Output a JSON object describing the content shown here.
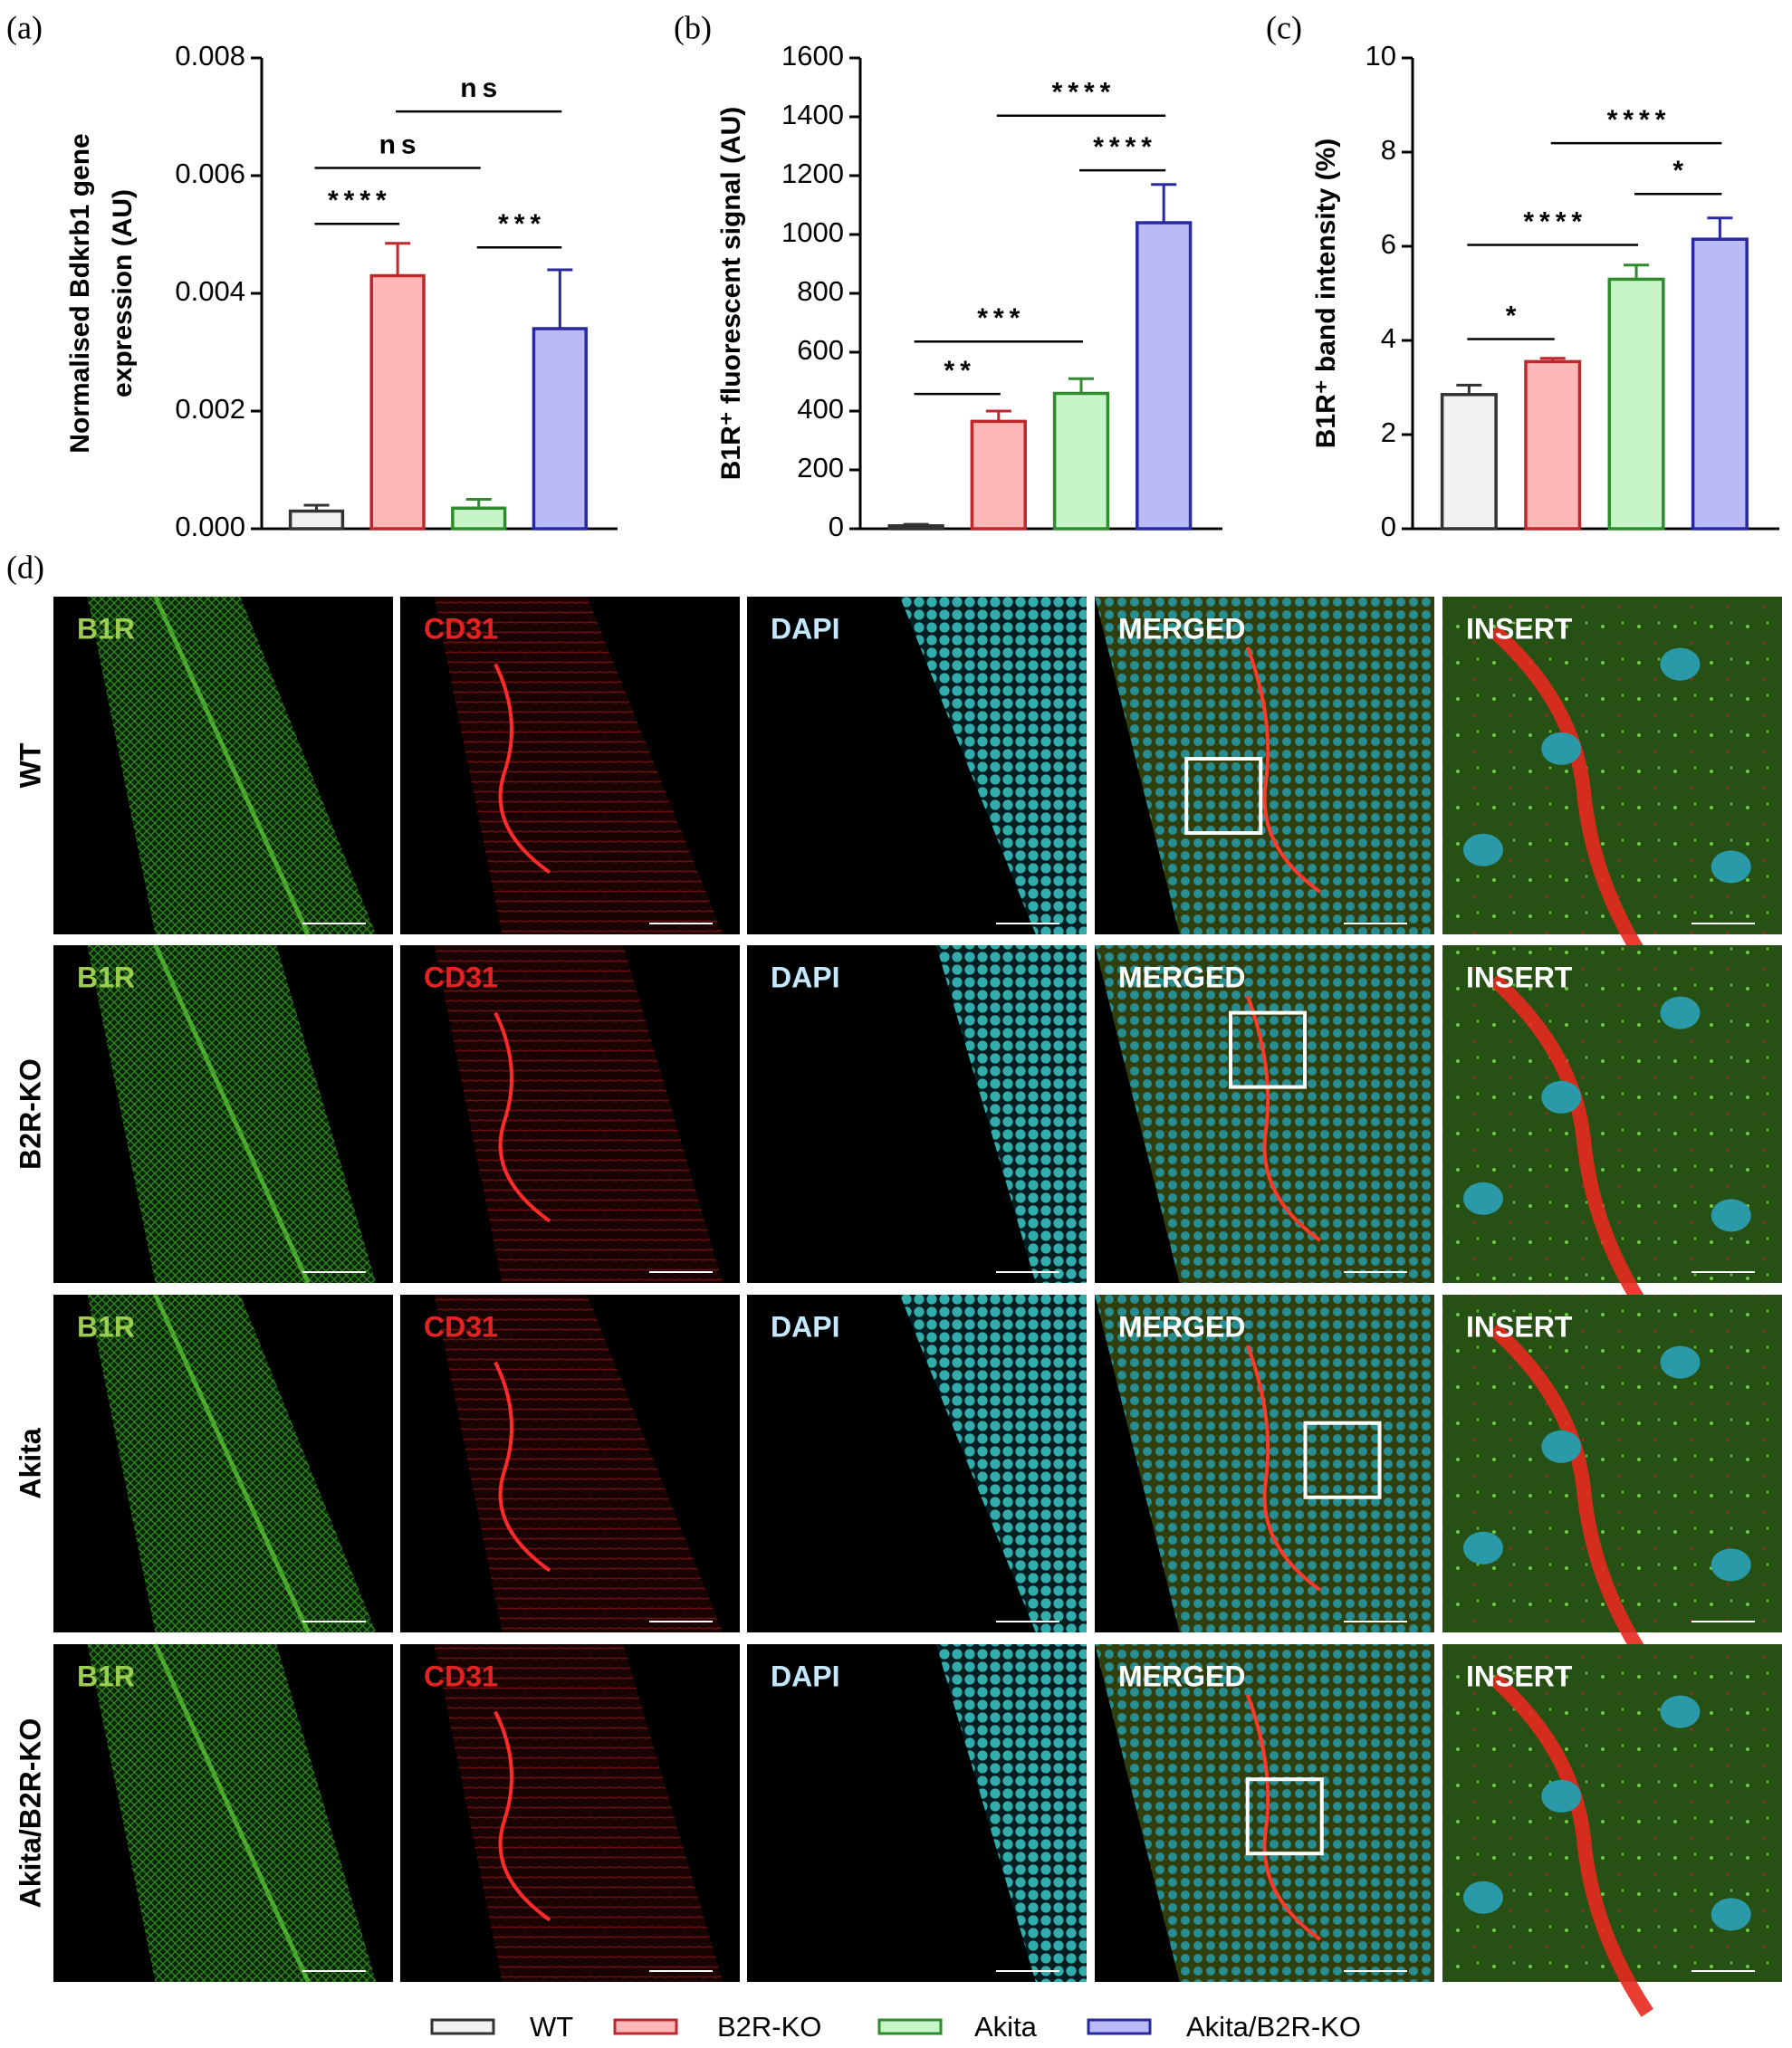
{
  "chart_data": [
    {
      "type": "bar",
      "label": "(a)",
      "ylabel": [
        "Normalised Bdkrb1 gene",
        "expression (AU)"
      ],
      "categories": [
        "WT",
        "B2R-KO",
        "Akita",
        "Akita/B2R-KO"
      ],
      "values": [
        0.0003,
        0.0043,
        0.00035,
        0.0034
      ],
      "errors": [
        0.0001,
        0.00055,
        0.00015,
        0.001
      ],
      "colors": [
        "#f2f2f2",
        "#ffb8b8",
        "#c8f5c8",
        "#babaf7"
      ],
      "edge_colors": [
        "#333333",
        "#c0272d",
        "#2e8b2e",
        "#2a2aa0"
      ],
      "ylim": [
        0,
        0.008
      ],
      "yticks": [
        {
          "value": 0,
          "label": "0.000"
        },
        {
          "value": 0.002,
          "label": "0.002"
        },
        {
          "value": 0.004,
          "label": "0.004"
        },
        {
          "value": 0.006,
          "label": "0.006"
        },
        {
          "value": 0.008,
          "label": "0.008"
        }
      ],
      "annotations": [
        {
          "text": "****",
          "from": 0,
          "to": 1,
          "y": 0.00518
        },
        {
          "text": "ns",
          "from": 0,
          "to": 2,
          "y": 0.00613
        },
        {
          "text": "ns",
          "from": 1,
          "to": 3,
          "y": 0.00709
        },
        {
          "text": "***",
          "from": 2,
          "to": 3,
          "y": 0.00478
        }
      ]
    },
    {
      "type": "bar",
      "label": "(b)",
      "ylabel": [
        "B1R⁺ fluorescent signal (AU)"
      ],
      "categories": [
        "WT",
        "B2R-KO",
        "Akita",
        "Akita/B2R-KO"
      ],
      "values": [
        10,
        365,
        460,
        1040
      ],
      "errors": [
        5,
        35,
        50,
        130
      ],
      "colors": [
        "#f2f2f2",
        "#ffb8b8",
        "#c8f5c8",
        "#babaf7"
      ],
      "edge_colors": [
        "#333333",
        "#c0272d",
        "#2e8b2e",
        "#2a2aa0"
      ],
      "ylim": [
        0,
        1600
      ],
      "yticks": [
        0,
        200,
        400,
        600,
        800,
        1000,
        1200,
        1400,
        1600
      ],
      "annotations": [
        {
          "text": "**",
          "from": 0,
          "to": 1,
          "y": 458
        },
        {
          "text": "***",
          "from": 0,
          "to": 2,
          "y": 636
        },
        {
          "text": "****",
          "from": 2,
          "to": 3,
          "y": 1218
        },
        {
          "text": "****",
          "from": 1,
          "to": 3,
          "y": 1404
        }
      ]
    },
    {
      "type": "bar",
      "label": "(c)",
      "ylabel": [
        "B1R⁺ band intensity (%)"
      ],
      "categories": [
        "WT",
        "B2R-KO",
        "Akita",
        "Akita/B2R-KO"
      ],
      "values": [
        2.85,
        3.55,
        5.3,
        6.15
      ],
      "errors": [
        0.2,
        0.07,
        0.3,
        0.45
      ],
      "colors": [
        "#f2f2f2",
        "#ffb8b8",
        "#c8f5c8",
        "#babaf7"
      ],
      "edge_colors": [
        "#333333",
        "#c0272d",
        "#2e8b2e",
        "#2a2aa0"
      ],
      "ylim": [
        0,
        10
      ],
      "yticks": [
        0,
        2,
        4,
        6,
        8,
        10
      ],
      "annotations": [
        {
          "text": "*",
          "from": 0,
          "to": 1,
          "y": 4.03
        },
        {
          "text": "****",
          "from": 0,
          "to": 2,
          "y": 6.03
        },
        {
          "text": "*",
          "from": 2,
          "to": 3,
          "y": 7.11
        },
        {
          "text": "****",
          "from": 1,
          "to": 3,
          "y": 8.19
        }
      ]
    }
  ],
  "panel_d": {
    "label": "(d)",
    "columns": [
      {
        "name": "B1R",
        "color": "#9acd50"
      },
      {
        "name": "CD31",
        "color": "#e52222"
      },
      {
        "name": "DAPI",
        "color": "#c4e8ff"
      },
      {
        "name": "MERGED",
        "color": "#ffffff"
      },
      {
        "name": "INSERT",
        "color": "#ffffff"
      }
    ]
  }
}
